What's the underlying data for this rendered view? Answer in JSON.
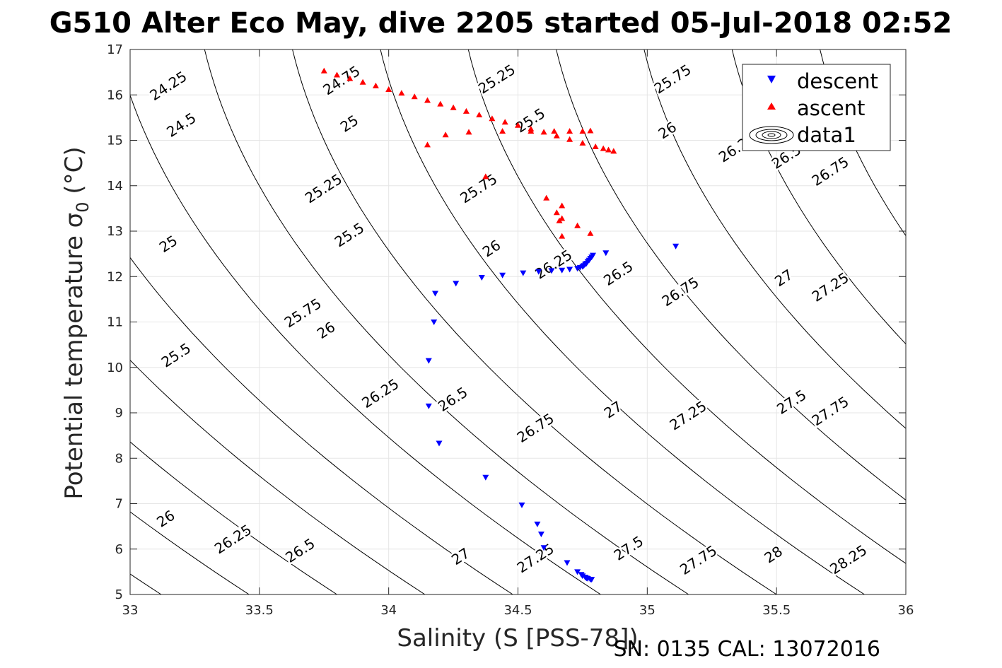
{
  "chart_data": {
    "type": "scatter",
    "title": "G510 Alter Eco May, dive 2205 started 05-Jul-2018 02:52",
    "xlabel": "Salinity (S [PSS-78])",
    "ylabel": "Potential temperature σ",
    "ylabel_sub": "0",
    "ylabel_unit": " (°C)",
    "xlim": [
      33,
      36
    ],
    "ylim": [
      5,
      17
    ],
    "x_ticks": [
      33,
      33.5,
      34,
      34.5,
      35,
      35.5,
      36
    ],
    "x_tick_labels": [
      "33",
      "33.5",
      "34",
      "34.5",
      "35",
      "35.5",
      "36"
    ],
    "y_ticks": [
      5,
      6,
      7,
      8,
      9,
      10,
      11,
      12,
      13,
      14,
      15,
      16,
      17
    ],
    "y_tick_labels": [
      "5",
      "6",
      "7",
      "8",
      "9",
      "10",
      "11",
      "12",
      "13",
      "14",
      "15",
      "16",
      "17"
    ],
    "grid": true,
    "legend_position": "top-right",
    "series": [
      {
        "name": "descent",
        "marker": "triangle-down",
        "color": "#0000ff",
        "x": [
          35.11,
          34.84,
          34.79,
          34.785,
          34.78,
          34.775,
          34.77,
          34.765,
          34.76,
          34.755,
          34.75,
          34.74,
          34.73,
          34.7,
          34.67,
          34.63,
          34.58,
          34.52,
          34.44,
          34.36,
          34.26,
          34.18,
          34.175,
          34.155,
          34.155,
          34.195,
          34.375,
          34.515,
          34.575,
          34.59,
          34.6,
          34.69,
          34.73,
          34.745,
          34.75,
          34.76,
          34.765,
          34.77,
          34.78,
          34.785
        ],
        "y": [
          12.67,
          12.52,
          12.47,
          12.43,
          12.4,
          12.36,
          12.33,
          12.29,
          12.27,
          12.24,
          12.22,
          12.2,
          12.18,
          12.16,
          12.14,
          12.13,
          12.11,
          12.08,
          12.03,
          11.98,
          11.85,
          11.63,
          11.0,
          10.15,
          9.15,
          8.33,
          7.58,
          6.97,
          6.55,
          6.33,
          6.03,
          5.7,
          5.5,
          5.44,
          5.41,
          5.38,
          5.36,
          5.35,
          5.33,
          5.33
        ]
      },
      {
        "name": "ascent",
        "marker": "triangle-up",
        "color": "#ff0000",
        "x": [
          33.75,
          33.8,
          33.85,
          33.9,
          33.95,
          34.0,
          34.05,
          34.1,
          34.15,
          34.2,
          34.25,
          34.3,
          34.35,
          34.4,
          34.45,
          34.5,
          34.55,
          34.6,
          34.65,
          34.7,
          34.75,
          34.8,
          34.83,
          34.85,
          34.87,
          34.15,
          34.22,
          34.31,
          34.44,
          34.55,
          34.64,
          34.7,
          34.75,
          34.78,
          34.375,
          34.61,
          34.65,
          34.67,
          34.66,
          34.67,
          34.67,
          34.73,
          34.78
        ],
        "y": [
          16.53,
          16.44,
          16.36,
          16.28,
          16.2,
          16.12,
          16.04,
          15.96,
          15.88,
          15.8,
          15.72,
          15.64,
          15.56,
          15.48,
          15.4,
          15.33,
          15.25,
          15.18,
          15.1,
          15.02,
          14.94,
          14.86,
          14.82,
          14.79,
          14.76,
          14.9,
          15.12,
          15.18,
          15.2,
          15.2,
          15.2,
          15.2,
          15.2,
          15.21,
          14.2,
          13.73,
          13.41,
          13.56,
          13.23,
          13.28,
          12.89,
          13.12,
          12.95
        ]
      }
    ],
    "contour_series_name": "data1",
    "contour_labels": [
      {
        "text": "24.25",
        "x": 33.15,
        "y": 16.18
      },
      {
        "text": "24.5",
        "x": 33.2,
        "y": 15.32
      },
      {
        "text": "24.75",
        "x": 33.82,
        "y": 16.3
      },
      {
        "text": "25",
        "x": 33.85,
        "y": 15.35
      },
      {
        "text": "25.25",
        "x": 34.42,
        "y": 16.33
      },
      {
        "text": "25.5",
        "x": 34.55,
        "y": 15.42
      },
      {
        "text": "25.75",
        "x": 35.1,
        "y": 16.33
      },
      {
        "text": "26",
        "x": 35.08,
        "y": 15.2
      },
      {
        "text": "26.25",
        "x": 35.35,
        "y": 14.82
      },
      {
        "text": "26.5",
        "x": 35.54,
        "y": 14.62
      },
      {
        "text": "26.75",
        "x": 35.71,
        "y": 14.3
      },
      {
        "text": "25.25",
        "x": 33.75,
        "y": 13.92
      },
      {
        "text": "25",
        "x": 33.15,
        "y": 12.7
      },
      {
        "text": "25.75",
        "x": 34.35,
        "y": 13.92
      },
      {
        "text": "25.5",
        "x": 33.85,
        "y": 12.9
      },
      {
        "text": "26",
        "x": 34.4,
        "y": 12.6
      },
      {
        "text": "26.25",
        "x": 34.64,
        "y": 12.25
      },
      {
        "text": "26.5",
        "x": 34.89,
        "y": 12.05
      },
      {
        "text": "26.75",
        "x": 35.13,
        "y": 11.65
      },
      {
        "text": "27",
        "x": 35.53,
        "y": 11.95
      },
      {
        "text": "27.25",
        "x": 35.71,
        "y": 11.75
      },
      {
        "text": "25.75",
        "x": 33.67,
        "y": 11.18
      },
      {
        "text": "25.5",
        "x": 33.18,
        "y": 10.25
      },
      {
        "text": "26",
        "x": 33.76,
        "y": 10.8
      },
      {
        "text": "26.25",
        "x": 33.97,
        "y": 9.41
      },
      {
        "text": "26.5",
        "x": 34.25,
        "y": 9.28
      },
      {
        "text": "26.75",
        "x": 34.57,
        "y": 8.65
      },
      {
        "text": "27",
        "x": 34.87,
        "y": 9.05
      },
      {
        "text": "27.25",
        "x": 35.16,
        "y": 8.92
      },
      {
        "text": "27.5",
        "x": 35.56,
        "y": 9.22
      },
      {
        "text": "27.75",
        "x": 35.71,
        "y": 9.02
      },
      {
        "text": "26",
        "x": 33.14,
        "y": 6.65
      },
      {
        "text": "26.25",
        "x": 33.4,
        "y": 6.2
      },
      {
        "text": "26.5",
        "x": 33.66,
        "y": 5.95
      },
      {
        "text": "27",
        "x": 34.28,
        "y": 5.82
      },
      {
        "text": "27.25",
        "x": 34.57,
        "y": 5.78
      },
      {
        "text": "27.5",
        "x": 34.93,
        "y": 6.0
      },
      {
        "text": "27.75",
        "x": 35.2,
        "y": 5.74
      },
      {
        "text": "28",
        "x": 35.49,
        "y": 5.86
      },
      {
        "text": "28.25",
        "x": 35.78,
        "y": 5.75
      }
    ]
  },
  "footer": "SN: 0135  CAL: 13072016"
}
